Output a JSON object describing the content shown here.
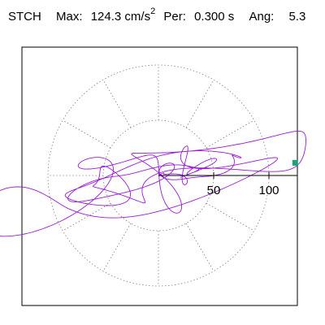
{
  "header": {
    "station": "STCH",
    "max_label": "Max:",
    "max_value": "124.3",
    "max_unit_base": "cm/s",
    "max_unit_exp": "2",
    "period_label": "Per:",
    "period_value": "0.300 s",
    "angle_label": "Ang:",
    "angle_value": "5.3"
  },
  "colors": {
    "trace": "#9b19d6",
    "marker": "#1aa37a",
    "grid": "#808080",
    "frame": "#000000"
  },
  "chart_data": {
    "type": "scatter",
    "title": "STCH  Max: 124.3 cm/s2  Per: 0.300 s  Ang: 5.3",
    "xlabel": "",
    "ylabel": "",
    "radial_ticks": [
      50,
      100
    ],
    "radial_tick_labels": [
      "50",
      "100"
    ],
    "rings": [
      50,
      100
    ],
    "spokes_deg": [
      0,
      30,
      60,
      90,
      120,
      150,
      180,
      210,
      240,
      270,
      300,
      330
    ],
    "max_value": 124.3,
    "max_angle_deg": 5.3,
    "range": [
      -135,
      135
    ],
    "grid": true,
    "marker": {
      "r": 124.3,
      "angle_deg": 5.3
    },
    "orbit_components": [
      {
        "ax": 95,
        "ay": 12,
        "fx": 0.55,
        "fy": 0.55,
        "px": 0.0,
        "py": 0.6,
        "decay": 0.18
      },
      {
        "ax": 60,
        "ay": 22,
        "fx": 1.3,
        "fy": 1.3,
        "px": 1.1,
        "py": 2.0,
        "decay": 0.35
      },
      {
        "ax": 45,
        "ay": 18,
        "fx": 2.1,
        "fy": 2.0,
        "px": 2.5,
        "py": 0.4,
        "decay": 0.6
      },
      {
        "ax": 25,
        "ay": 20,
        "fx": 3.7,
        "fy": 3.5,
        "px": 0.8,
        "py": 1.7,
        "decay": 0.9
      }
    ],
    "samples": 1400,
    "duration": 18
  }
}
